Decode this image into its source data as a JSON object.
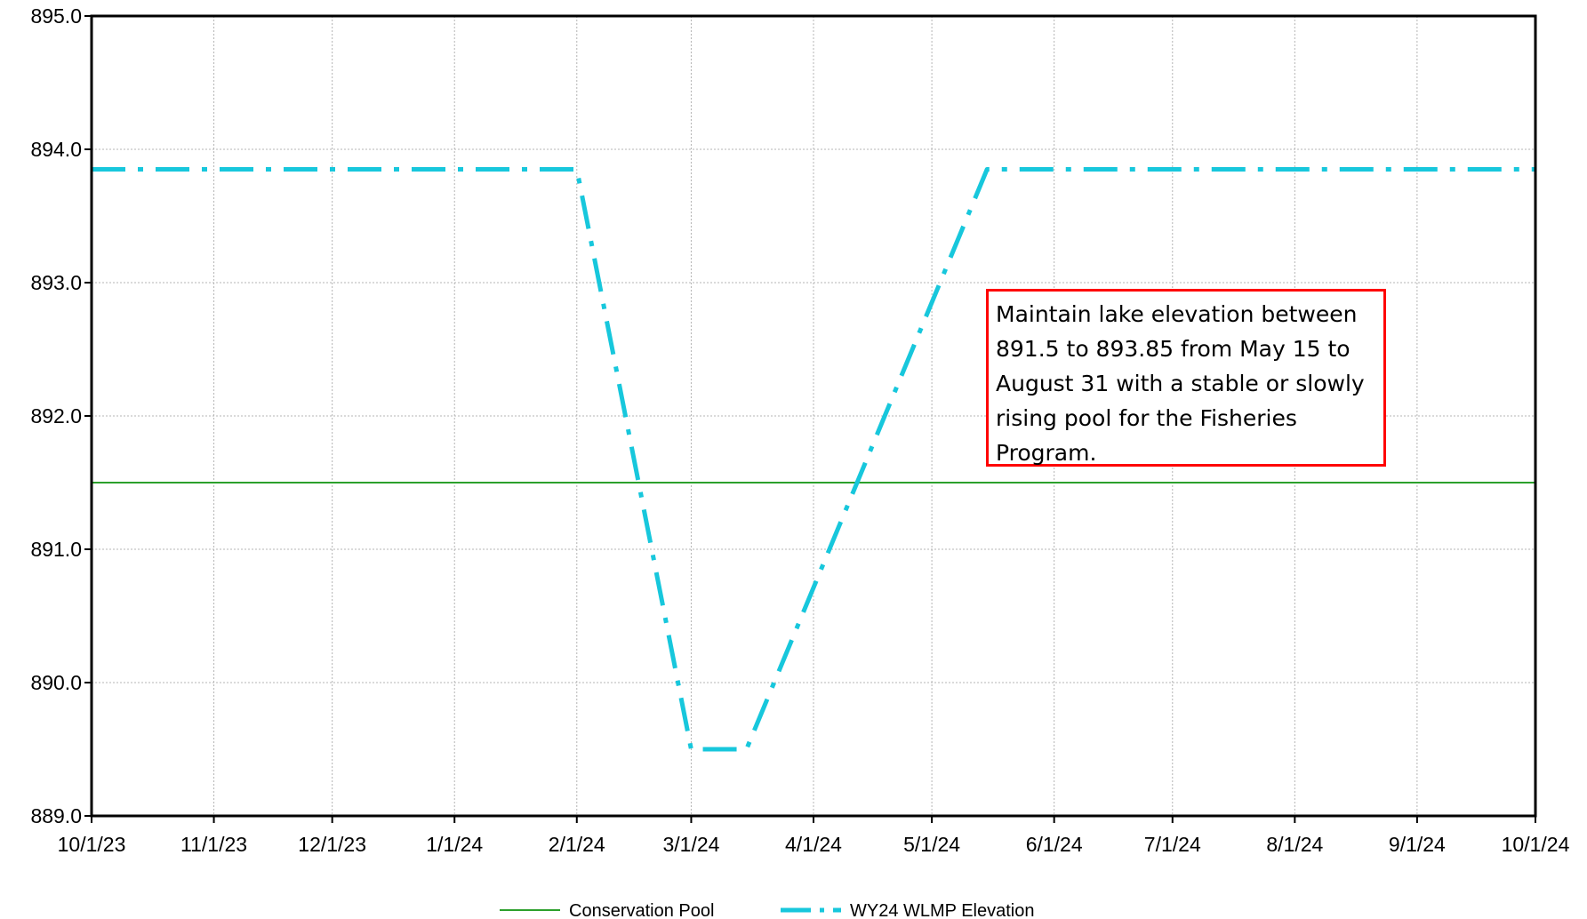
{
  "chart_data": {
    "type": "line",
    "title": "",
    "xlabel": "",
    "ylabel": "",
    "x_tick_labels": [
      "10/1/23",
      "11/1/23",
      "12/1/23",
      "1/1/24",
      "2/1/24",
      "3/1/24",
      "4/1/24",
      "5/1/24",
      "6/1/24",
      "7/1/24",
      "8/1/24",
      "9/1/24",
      "10/1/24"
    ],
    "x_ticks": [
      "2023-10-01",
      "2023-11-01",
      "2023-12-01",
      "2024-01-01",
      "2024-02-01",
      "2024-03-01",
      "2024-04-01",
      "2024-05-01",
      "2024-06-01",
      "2024-07-01",
      "2024-08-01",
      "2024-09-01",
      "2024-10-01"
    ],
    "xlim": [
      "2023-10-01",
      "2024-10-01"
    ],
    "y_tick_labels": [
      "889.0",
      "890.0",
      "891.0",
      "892.0",
      "893.0",
      "894.0",
      "895.0"
    ],
    "y_ticks": [
      889,
      890,
      891,
      892,
      893,
      894,
      895
    ],
    "ylim": [
      889,
      895
    ],
    "grid": true,
    "legend_position": "bottom-center",
    "series": [
      {
        "name": "Conservation Pool",
        "color": "#2ca02c",
        "style": "solid",
        "points": [
          {
            "x": "2023-10-01",
            "y": 891.5
          },
          {
            "x": "2024-10-01",
            "y": 891.5
          }
        ]
      },
      {
        "name": "WY24 WLMP Elevation",
        "color": "#17c7dc",
        "style": "dash-dot",
        "points": [
          {
            "x": "2023-10-01",
            "y": 893.85
          },
          {
            "x": "2024-02-01",
            "y": 893.85
          },
          {
            "x": "2024-03-01",
            "y": 889.5
          },
          {
            "x": "2024-03-15",
            "y": 889.5
          },
          {
            "x": "2024-05-15",
            "y": 893.85
          },
          {
            "x": "2024-10-01",
            "y": 893.85
          }
        ]
      }
    ],
    "annotation": {
      "lines": [
        "Maintain lake elevation between",
        "891.5 to 893.85 from May 15 to",
        "August 31 with a stable or slowly",
        "rising pool for the Fisheries",
        "Program."
      ],
      "border_color": "#ff0000"
    }
  }
}
